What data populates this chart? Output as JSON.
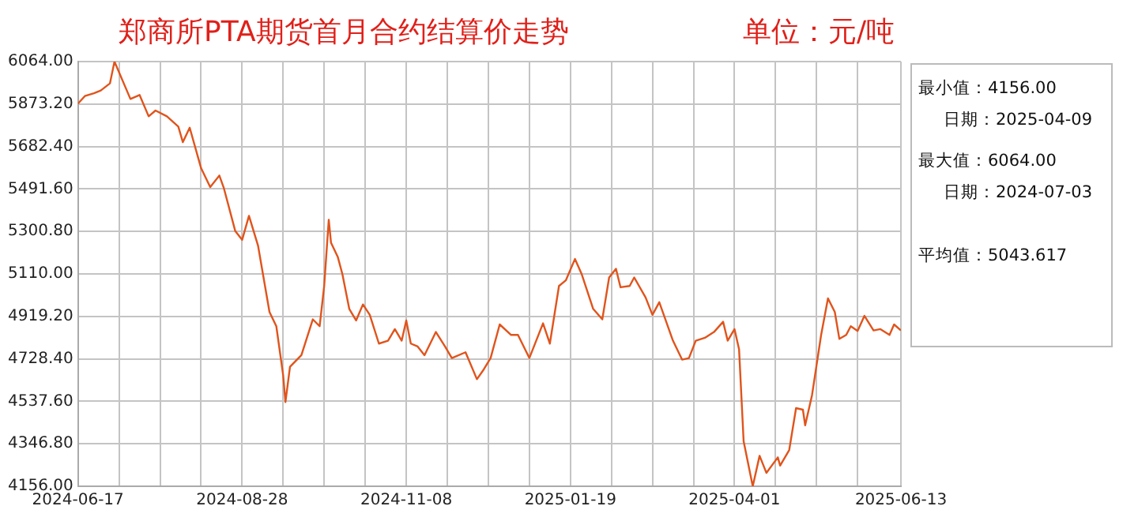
{
  "chart_data": {
    "type": "line",
    "title": "郑商所PTA期货首月合约结算价走势",
    "subtitle": "单位：元/吨",
    "x": [
      "2024-06-17",
      "2024-06-20",
      "2024-06-24",
      "2024-06-27",
      "2024-07-01",
      "2024-07-03",
      "2024-07-10",
      "2024-07-14",
      "2024-07-18",
      "2024-07-21",
      "2024-07-26",
      "2024-07-31",
      "2024-08-02",
      "2024-08-05",
      "2024-08-10",
      "2024-08-14",
      "2024-08-18",
      "2024-08-20",
      "2024-08-25",
      "2024-08-28",
      "2024-08-31",
      "2024-09-04",
      "2024-09-09",
      "2024-09-12",
      "2024-09-15",
      "2024-09-16",
      "2024-09-18",
      "2024-09-23",
      "2024-09-28",
      "2024-10-01",
      "2024-10-03",
      "2024-10-05",
      "2024-10-06",
      "2024-10-09",
      "2024-10-11",
      "2024-10-14",
      "2024-10-17",
      "2024-10-20",
      "2024-10-23",
      "2024-10-27",
      "2024-10-31",
      "2024-11-03",
      "2024-11-06",
      "2024-11-08",
      "2024-11-10",
      "2024-11-13",
      "2024-11-16",
      "2024-11-21",
      "2024-11-25",
      "2024-11-28",
      "2024-12-04",
      "2024-12-09",
      "2024-12-12",
      "2024-12-15",
      "2024-12-19",
      "2024-12-24",
      "2024-12-27",
      "2025-01-01",
      "2025-01-07",
      "2025-01-10",
      "2025-01-14",
      "2025-01-17",
      "2025-01-21",
      "2025-01-24",
      "2025-01-29",
      "2025-02-02",
      "2025-02-05",
      "2025-02-08",
      "2025-02-10",
      "2025-02-14",
      "2025-02-16",
      "2025-02-21",
      "2025-02-24",
      "2025-02-27",
      "2025-03-05",
      "2025-03-09",
      "2025-03-12",
      "2025-03-15",
      "2025-03-19",
      "2025-03-23",
      "2025-03-27",
      "2025-03-29",
      "2025-04-01",
      "2025-04-03",
      "2025-04-05",
      "2025-04-09",
      "2025-04-12",
      "2025-04-15",
      "2025-04-20",
      "2025-04-21",
      "2025-04-25",
      "2025-04-28",
      "2025-05-01",
      "2025-05-02",
      "2025-05-05",
      "2025-05-09",
      "2025-05-12",
      "2025-05-15",
      "2025-05-17",
      "2025-05-20",
      "2025-05-22",
      "2025-05-25",
      "2025-05-28",
      "2025-06-01",
      "2025-06-04",
      "2025-06-08",
      "2025-06-10",
      "2025-06-13"
    ],
    "series": [
      {
        "color": "#e0541c",
        "values": [
          5875,
          5909,
          5922,
          5934,
          5966,
          6064,
          5896,
          5914,
          5818,
          5844,
          5818,
          5772,
          5702,
          5767,
          5585,
          5500,
          5552,
          5495,
          5302,
          5263,
          5371,
          5236,
          4939,
          4875,
          4655,
          4534,
          4693,
          4745,
          4906,
          4875,
          5056,
          5353,
          5250,
          5185,
          5108,
          4953,
          4901,
          4973,
          4926,
          4797,
          4810,
          4862,
          4810,
          4901,
          4797,
          4784,
          4745,
          4849,
          4784,
          4732,
          4758,
          4637,
          4681,
          4732,
          4883,
          4836,
          4836,
          4732,
          4888,
          4797,
          5056,
          5081,
          5177,
          5108,
          4953,
          4906,
          5094,
          5133,
          5050,
          5056,
          5094,
          5004,
          4926,
          4983,
          4810,
          4725,
          4732,
          4810,
          4823,
          4849,
          4895,
          4810,
          4862,
          4771,
          4358,
          4156,
          4293,
          4216,
          4286,
          4249,
          4319,
          4507,
          4500,
          4430,
          4565,
          4836,
          5000,
          4939,
          4818,
          4836,
          4875,
          4854,
          4922,
          4856,
          4862,
          4836,
          4883,
          4856
        ]
      }
    ],
    "xlim": [
      "2024-06-17",
      "2025-06-13"
    ],
    "xticks": [
      {
        "value": "2024-06-17",
        "label": "2024-06-17"
      },
      {
        "value": "2024-07-05",
        "label": null
      },
      {
        "value": "2024-07-23",
        "label": null
      },
      {
        "value": "2024-08-10",
        "label": null
      },
      {
        "value": "2024-08-28",
        "label": "2024-08-28"
      },
      {
        "value": "2024-09-15",
        "label": null
      },
      {
        "value": "2024-10-03",
        "label": null
      },
      {
        "value": "2024-10-21",
        "label": null
      },
      {
        "value": "2024-11-08",
        "label": "2024-11-08"
      },
      {
        "value": "2024-11-26",
        "label": null
      },
      {
        "value": "2024-12-14",
        "label": null
      },
      {
        "value": "2025-01-01",
        "label": null
      },
      {
        "value": "2025-01-19",
        "label": "2025-01-19"
      },
      {
        "value": "2025-02-06",
        "label": null
      },
      {
        "value": "2025-02-24",
        "label": null
      },
      {
        "value": "2025-03-14",
        "label": null
      },
      {
        "value": "2025-04-01",
        "label": "2025-04-01"
      },
      {
        "value": "2025-04-19",
        "label": null
      },
      {
        "value": "2025-05-07",
        "label": null
      },
      {
        "value": "2025-05-25",
        "label": null
      },
      {
        "value": "2025-06-13",
        "label": "2025-06-13"
      }
    ],
    "ylim": [
      4156,
      6064
    ],
    "yticks": [
      {
        "value": 4156,
        "label": "4156.00"
      },
      {
        "value": 4346.8,
        "label": "4346.80"
      },
      {
        "value": 4537.6,
        "label": "4537.60"
      },
      {
        "value": 4728.4,
        "label": "4728.40"
      },
      {
        "value": 4919.2,
        "label": "4919.20"
      },
      {
        "value": 5110,
        "label": "5110.00"
      },
      {
        "value": 5300.8,
        "label": "5300.80"
      },
      {
        "value": 5491.6,
        "label": "5491.60"
      },
      {
        "value": 5682.4,
        "label": "5682.40"
      },
      {
        "value": 5873.2,
        "label": "5873.20"
      },
      {
        "value": 6064,
        "label": "6064.00"
      }
    ],
    "grid": true,
    "marker": "none",
    "line_style": "solid",
    "annotations": [
      "最小值：4156.00",
      "日期：2025-04-09",
      "最大值：6064.00",
      "日期：2024-07-03",
      "平均值：5043.617"
    ]
  }
}
